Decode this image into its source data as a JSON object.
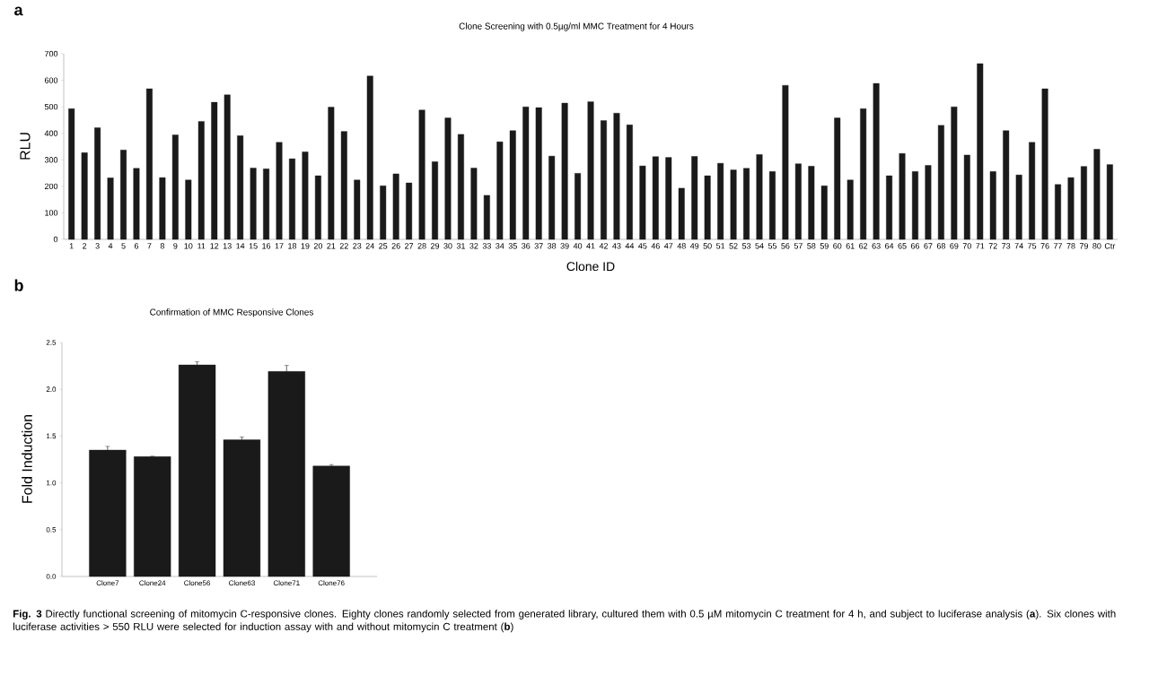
{
  "chart_data": [
    {
      "type": "bar",
      "title": "Clone Screening with 0.5µg/ml MMC Treatment for 4 Hours",
      "xlabel": "Clone ID",
      "ylabel": "RLU",
      "color": "#1a1a1a",
      "categories": [
        "1",
        "2",
        "3",
        "4",
        "5",
        "6",
        "7",
        "8",
        "9",
        "10",
        "11",
        "12",
        "13",
        "14",
        "15",
        "16",
        "17",
        "18",
        "19",
        "20",
        "21",
        "22",
        "23",
        "24",
        "25",
        "26",
        "27",
        "28",
        "29",
        "30",
        "31",
        "32",
        "33",
        "34",
        "35",
        "36",
        "37",
        "38",
        "39",
        "40",
        "41",
        "42",
        "43",
        "44",
        "45",
        "46",
        "47",
        "48",
        "49",
        "50",
        "51",
        "52",
        "53",
        "54",
        "55",
        "56",
        "57",
        "58",
        "59",
        "60",
        "61",
        "62",
        "63",
        "64",
        "65",
        "66",
        "67",
        "68",
        "69",
        "70",
        "71",
        "72",
        "73",
        "74",
        "75",
        "76",
        "77",
        "78",
        "79",
        "80",
        "Ctr"
      ],
      "values": [
        493,
        327,
        421,
        232,
        337,
        268,
        568,
        233,
        394,
        224,
        445,
        517,
        545,
        391,
        269,
        266,
        366,
        304,
        330,
        240,
        499,
        407,
        224,
        616,
        202,
        247,
        213,
        488,
        293,
        458,
        396,
        269,
        166,
        368,
        410,
        500,
        497,
        314,
        514,
        249,
        519,
        448,
        476,
        432,
        277,
        312,
        309,
        193,
        313,
        240,
        287,
        262,
        268,
        320,
        256,
        581,
        285,
        276,
        202,
        458,
        224,
        493,
        588,
        240,
        324,
        256,
        279,
        430,
        500,
        318,
        663,
        256,
        410,
        243,
        366,
        568,
        207,
        233,
        275,
        340,
        282
      ],
      "ylim": [
        0,
        700
      ],
      "yticks": [
        0,
        100,
        200,
        300,
        400,
        500,
        600,
        700
      ],
      "annotations": [
        "**a**"
      ]
    },
    {
      "type": "bar",
      "title": "Confirmation of MMC Responsive Clones",
      "ylabel": "Fold Induction",
      "color": "#1a1a1a",
      "categories": [
        "Clone7",
        "Clone24",
        "Clone56",
        "Clone63",
        "Clone71",
        "Clone76"
      ],
      "values": [
        1.35,
        1.28,
        2.26,
        1.46,
        2.19,
        1.18
      ],
      "errors": [
        0.04,
        0.005,
        0.035,
        0.03,
        0.065,
        0.015
      ],
      "ylim": [
        0,
        2.5
      ],
      "yticks": [
        {
          "value": 0,
          "label": "0.0"
        },
        {
          "value": 0.5,
          "label": "0.5"
        },
        {
          "value": 1,
          "label": "1.0"
        },
        {
          "value": 1.5,
          "label": "1.5"
        },
        {
          "value": 2,
          "label": "2.0"
        },
        {
          "value": 2.5,
          "label": "2.5"
        }
      ],
      "annotations": [
        "**b**",
        "**Fig. 3**  Directly functional screening of mitomycin C-responsive clones. Eighty clones randomly selected from generated library, cultured them with 0.5 µM mitomycin C treatment for 4 h, and subject to luciferase analysis (**a**). Six clones with luciferase activities > 550 RLU were selected for induction assay with and without mitomycin C treatment (**b**)"
      ]
    }
  ]
}
